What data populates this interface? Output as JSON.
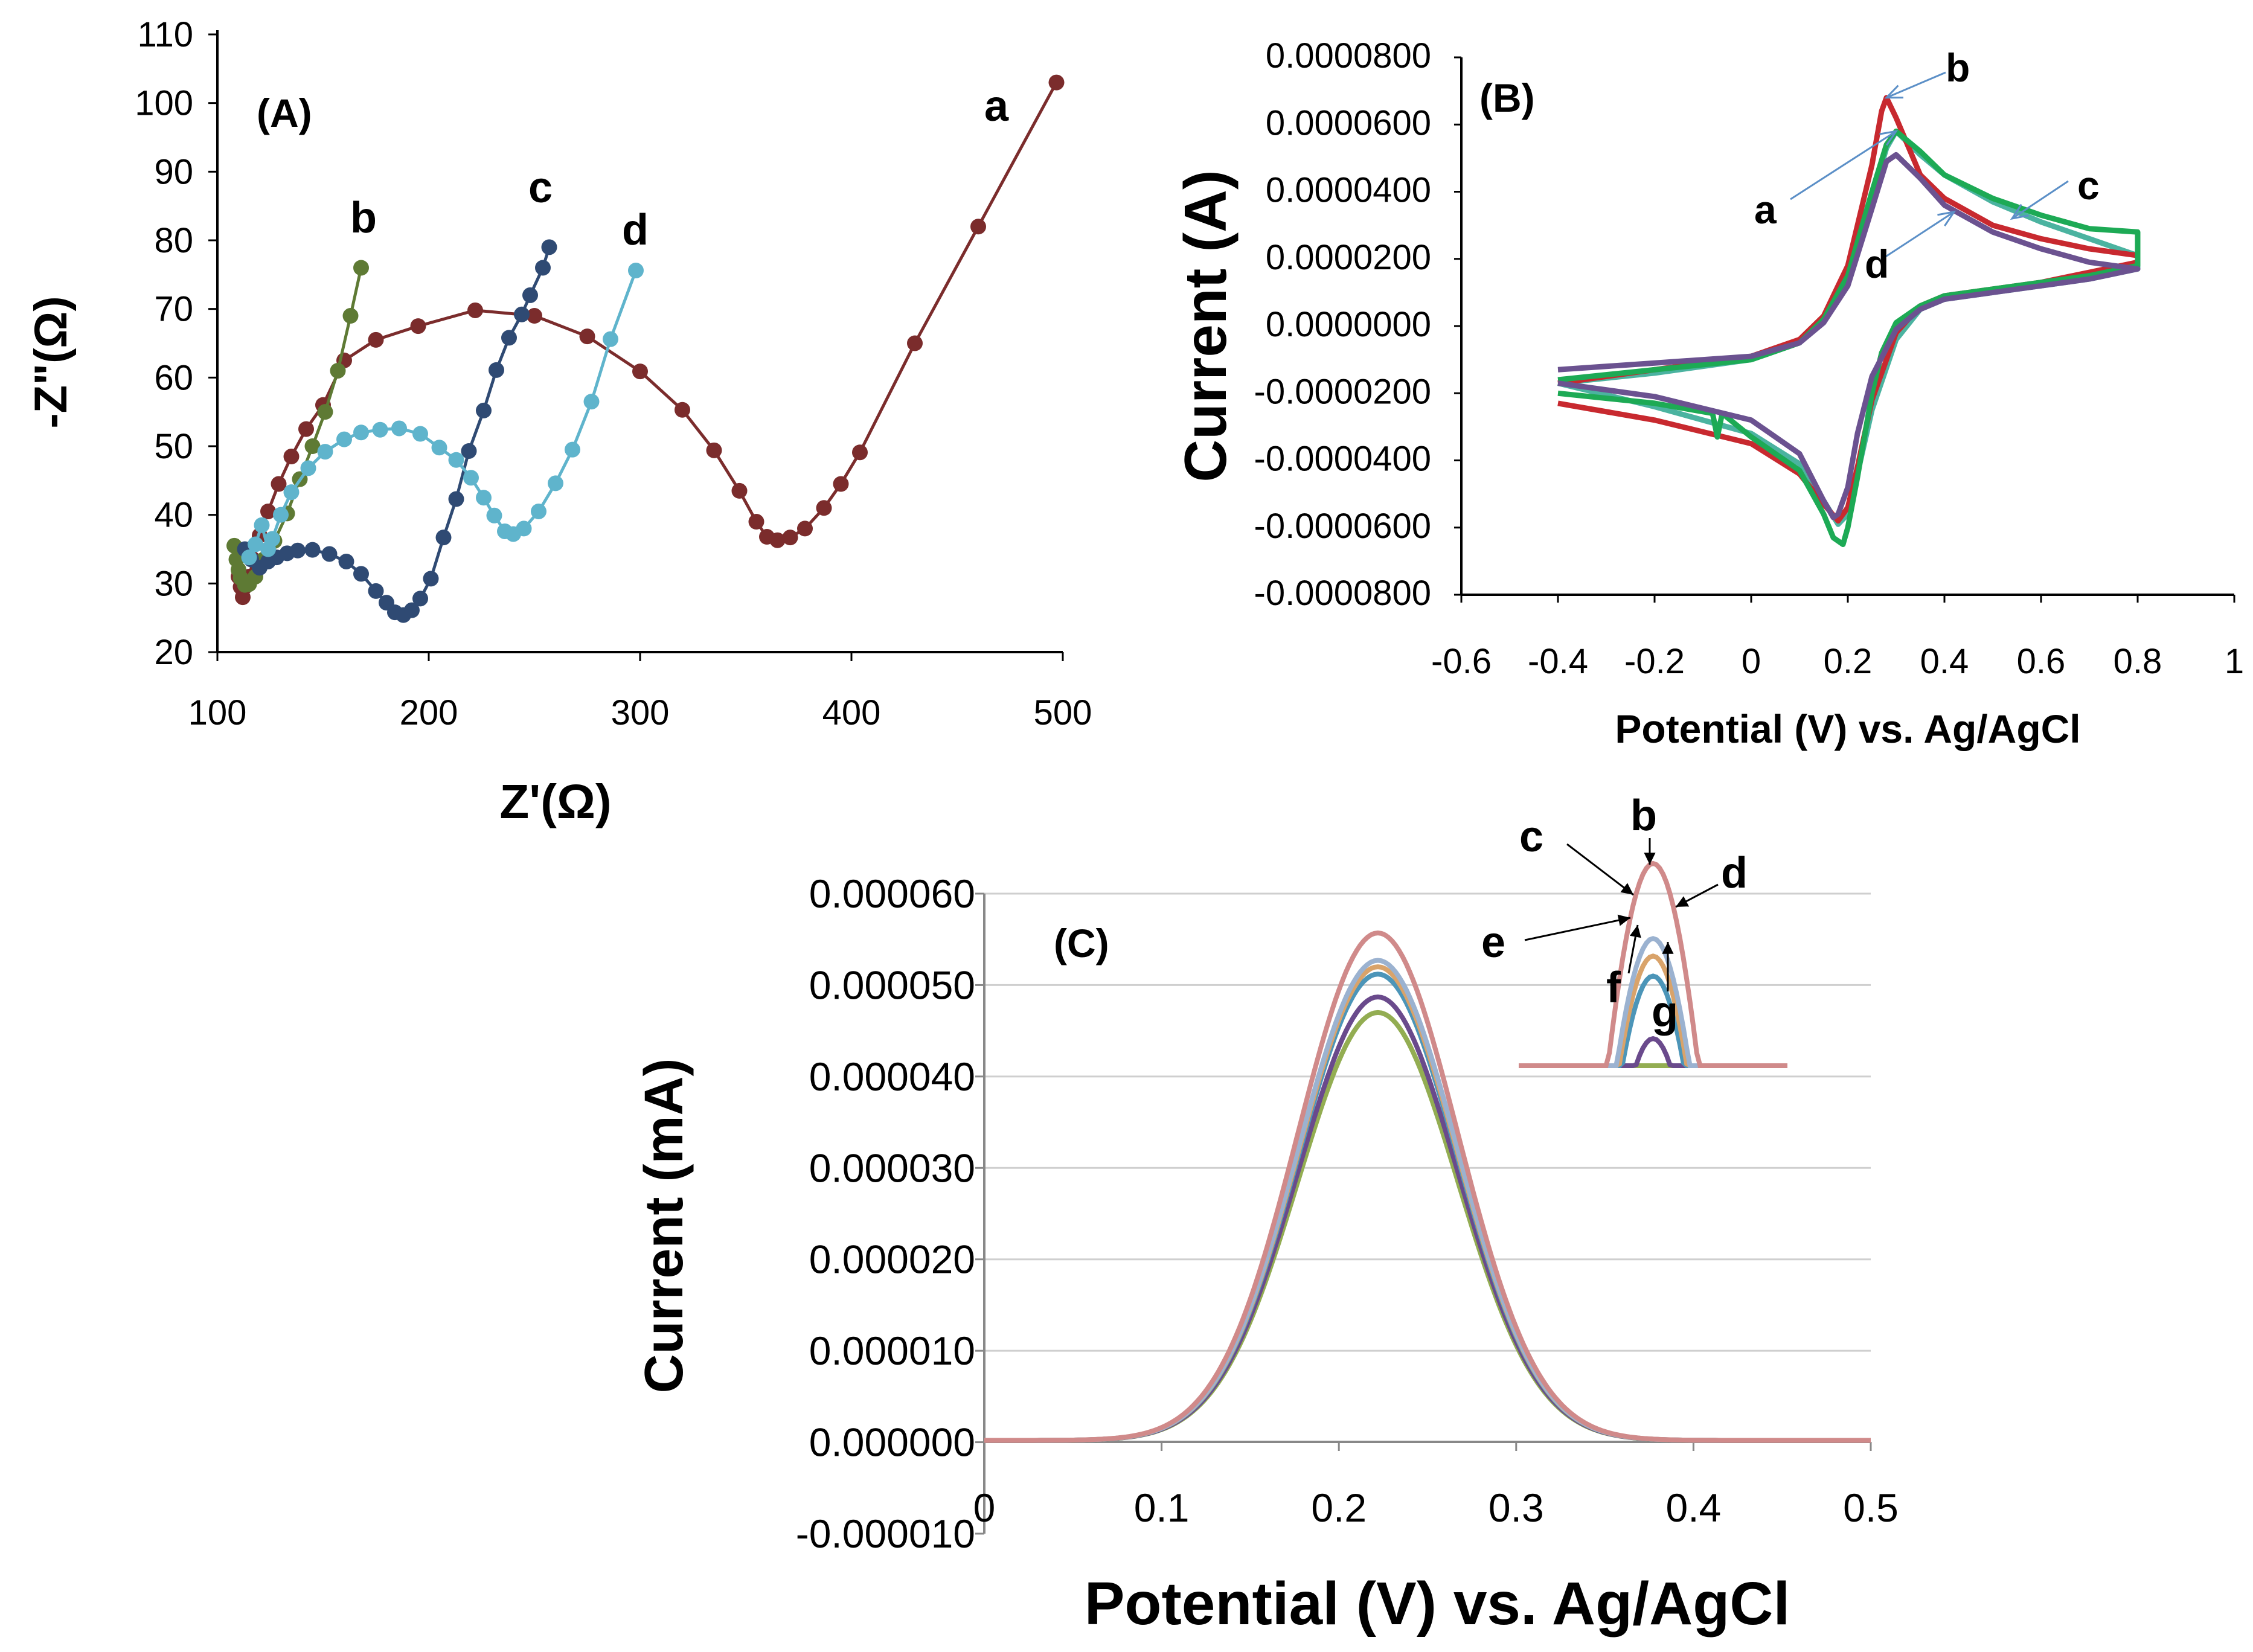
{
  "chart_data": [
    {
      "type": "scatter",
      "panel": "(A)",
      "title": "",
      "xlabel": "Z'(Ω)",
      "ylabel": "-Z\"(Ω)",
      "xlim": [
        100,
        500
      ],
      "ylim": [
        20,
        110
      ],
      "xticks": [
        "100",
        "200",
        "300",
        "400",
        "500"
      ],
      "yticks": [
        "20",
        "30",
        "40",
        "50",
        "60",
        "70",
        "80",
        "90",
        "100",
        "110"
      ],
      "grid": false,
      "series": [
        {
          "name": "a",
          "color": "#7b2c2c",
          "x": [
            110,
            111,
            112,
            113,
            115,
            117,
            120,
            124,
            129,
            135,
            142,
            150,
            160,
            175,
            195,
            222,
            250,
            275,
            300,
            320,
            335,
            347,
            355,
            360,
            365,
            371,
            378,
            387,
            395,
            404,
            430,
            460,
            497
          ],
          "y": [
            31,
            29.5,
            28,
            29.5,
            31,
            33.5,
            37,
            40.5,
            44.5,
            48.5,
            52.5,
            56,
            62.5,
            65.5,
            67.5,
            69.8,
            69,
            66,
            60.9,
            55.3,
            49.4,
            43.5,
            39,
            36.8,
            36.3,
            36.7,
            38,
            41,
            44.5,
            49.1,
            65,
            82,
            103
          ]
        },
        {
          "name": "b",
          "color": "#5e7a34",
          "x": [
            108,
            109,
            110,
            111,
            113,
            115,
            118,
            122,
            127,
            133,
            139,
            145,
            151,
            157,
            163,
            168
          ],
          "y": [
            35.5,
            33.5,
            32,
            30.8,
            29.8,
            29.9,
            31,
            33.5,
            36.2,
            40.2,
            45.2,
            50,
            55,
            61,
            69,
            76
          ]
        },
        {
          "name": "c",
          "color": "#2f4a73",
          "x": [
            113,
            116,
            120,
            124,
            128,
            133,
            138,
            145,
            153,
            161,
            168,
            175,
            180,
            184,
            188,
            192,
            196,
            201,
            207,
            213,
            219,
            226,
            232,
            238,
            244,
            248,
            254,
            257
          ],
          "y": [
            35,
            33.5,
            32.3,
            33.2,
            33.8,
            34.4,
            34.8,
            34.9,
            34.3,
            33.2,
            31.4,
            28.9,
            27.2,
            25.8,
            25.4,
            26.1,
            27.8,
            30.7,
            36.7,
            42.3,
            49.3,
            55.2,
            61.1,
            65.8,
            69.2,
            72,
            76,
            79
          ]
        },
        {
          "name": "d",
          "color": "#5fb4cc",
          "x": [
            115,
            118,
            121,
            124,
            126,
            130,
            135,
            143,
            151,
            160,
            168,
            177,
            186,
            196,
            205,
            213,
            220,
            226,
            231,
            236,
            240,
            245,
            252,
            260,
            268,
            277,
            286,
            298
          ],
          "y": [
            33.8,
            35.7,
            38.5,
            35,
            36.5,
            40,
            43.3,
            46.8,
            49.2,
            51,
            52,
            52.4,
            52.6,
            51.8,
            49.8,
            48,
            45.4,
            42.5,
            39.9,
            37.6,
            37.2,
            38,
            40.5,
            44.6,
            49.5,
            56.5,
            65.6,
            75.6
          ]
        }
      ],
      "annotations": [
        {
          "text": "a",
          "near": [
            475,
            99
          ]
        },
        {
          "text": "b",
          "near": [
            172,
            81
          ]
        },
        {
          "text": "c",
          "near": [
            258,
            86
          ]
        },
        {
          "text": "d",
          "near": [
            301,
            80
          ]
        }
      ]
    },
    {
      "type": "line",
      "panel": "(B)",
      "title": "",
      "xlabel": "Potential (V) vs. Ag/AgCl",
      "ylabel": "Current (A)",
      "xlim": [
        -0.6,
        1
      ],
      "ylim": [
        -8e-05,
        8e-05
      ],
      "xticks": [
        "-0.6",
        "-0.4",
        "-0.2",
        "0",
        "0.2",
        "0.4",
        "0.6",
        "0.8",
        "1"
      ],
      "yticks": [
        "-0.0000800",
        "-0.0000600",
        "-0.0000400",
        "-0.0000200",
        "0.0000000",
        "0.0000200",
        "0.0000400",
        "0.0000600",
        "0.0000800"
      ],
      "grid": false,
      "series": [
        {
          "name": "a",
          "color": "#4bb3a0",
          "forward": {
            "x": [
              -0.4,
              -0.2,
              0,
              0.1,
              0.15,
              0.2,
              0.25,
              0.28,
              0.3,
              0.35,
              0.4,
              0.5,
              0.6,
              0.7,
              0.8
            ],
            "y": [
              -1.7e-05,
              -1.4e-05,
              -1e-05,
              -5e-06,
              2e-06,
              1.4e-05,
              3.8e-05,
              5.3e-05,
              5.8e-05,
              5.1e-05,
              4.5e-05,
              3.7e-05,
              3.1e-05,
              2.6e-05,
              2.1e-05
            ]
          },
          "reverse": {
            "x": [
              0.8,
              0.7,
              0.6,
              0.5,
              0.4,
              0.35,
              0.3,
              0.25,
              0.22,
              0.2,
              0.18,
              0.15,
              0.1,
              0,
              -0.2,
              -0.4
            ],
            "y": [
              1.7e-05,
              1.4e-05,
              1.2e-05,
              1e-05,
              8e-06,
              5e-06,
              -4e-06,
              -2.5e-05,
              -4.4e-05,
              -5.6e-05,
              -5.9e-05,
              -5.2e-05,
              -4.1e-05,
              -3.2e-05,
              -2.4e-05,
              -1.7e-05
            ]
          }
        },
        {
          "name": "b",
          "color": "#c8292f",
          "forward": {
            "x": [
              -0.4,
              -0.2,
              0,
              0.1,
              0.15,
              0.2,
              0.25,
              0.27,
              0.28,
              0.3,
              0.35,
              0.4,
              0.5,
              0.6,
              0.7,
              0.8
            ],
            "y": [
              -1.7e-05,
              -1.3e-05,
              -9e-06,
              -4e-06,
              3e-06,
              1.8e-05,
              4.8e-05,
              6.4e-05,
              6.8e-05,
              6.2e-05,
              4.5e-05,
              3.8e-05,
              3e-05,
              2.6e-05,
              2.3e-05,
              2.1e-05
            ]
          },
          "reverse": {
            "x": [
              0.8,
              0.7,
              0.6,
              0.5,
              0.4,
              0.35,
              0.3,
              0.25,
              0.22,
              0.2,
              0.18,
              0.15,
              0.1,
              0,
              -0.2,
              -0.4
            ],
            "y": [
              1.9e-05,
              1.6e-05,
              1.3e-05,
              1.1e-05,
              9e-06,
              6e-06,
              -2e-06,
              -2.2e-05,
              -4.2e-05,
              -5.4e-05,
              -5.8e-05,
              -5.3e-05,
              -4.4e-05,
              -3.5e-05,
              -2.8e-05,
              -2.3e-05
            ]
          }
        },
        {
          "name": "c",
          "color": "#1daa55",
          "forward": {
            "x": [
              -0.4,
              -0.2,
              0,
              0.1,
              0.15,
              0.2,
              0.25,
              0.28,
              0.3,
              0.35,
              0.4,
              0.5,
              0.6,
              0.7,
              0.8
            ],
            "y": [
              -1.6e-05,
              -1.3e-05,
              -1e-05,
              -5e-06,
              2e-06,
              1.5e-05,
              4e-05,
              5.4e-05,
              5.8e-05,
              5.2e-05,
              4.5e-05,
              3.8e-05,
              3.3e-05,
              2.9e-05,
              2.8e-05
            ]
          },
          "reverse": {
            "x": [
              0.8,
              0.7,
              0.6,
              0.5,
              0.4,
              0.35,
              0.3,
              0.27,
              0.25,
              0.22,
              0.2,
              0.19,
              0.17,
              0.15,
              0.1,
              0,
              -0.06,
              -0.07,
              -0.08,
              -0.2,
              -0.4
            ],
            "y": [
              1.8e-05,
              1.5e-05,
              1.3e-05,
              1.1e-05,
              9e-06,
              6e-06,
              1e-06,
              -8e-06,
              -2e-05,
              -4.5e-05,
              -6e-05,
              -6.5e-05,
              -6.3e-05,
              -5.6e-05,
              -4.3e-05,
              -3.3e-05,
              -2.6e-05,
              -3.3e-05,
              -2.6e-05,
              -2.3e-05,
              -2e-05
            ]
          }
        },
        {
          "name": "d",
          "color": "#6b5290",
          "forward": {
            "x": [
              -0.4,
              -0.2,
              0,
              0.1,
              0.15,
              0.2,
              0.25,
              0.28,
              0.3,
              0.35,
              0.4,
              0.5,
              0.6,
              0.7,
              0.8
            ],
            "y": [
              -1.3e-05,
              -1.1e-05,
              -9e-06,
              -5e-06,
              1e-06,
              1.2e-05,
              3.5e-05,
              4.9e-05,
              5.1e-05,
              4.4e-05,
              3.6e-05,
              2.8e-05,
              2.3e-05,
              1.9e-05,
              1.7e-05
            ]
          },
          "reverse": {
            "x": [
              0.8,
              0.7,
              0.6,
              0.5,
              0.4,
              0.35,
              0.3,
              0.25,
              0.22,
              0.2,
              0.18,
              0.17,
              0.15,
              0.1,
              0,
              -0.2,
              -0.4
            ],
            "y": [
              1.7e-05,
              1.4e-05,
              1.2e-05,
              1e-05,
              8e-06,
              5e-06,
              -1e-06,
              -1.5e-05,
              -3.2e-05,
              -4.8e-05,
              -5.6e-05,
              -5.7e-05,
              -5.2e-05,
              -3.8e-05,
              -2.8e-05,
              -2.1e-05,
              -1.7e-05
            ]
          }
        }
      ],
      "annotations": [
        {
          "text": "a",
          "arrow_to": [
            0.3,
            5.8e-05
          ]
        },
        {
          "text": "b",
          "arrow_to": [
            0.28,
            6.8e-05
          ]
        },
        {
          "text": "c",
          "arrow_to": [
            0.54,
            3.2e-05
          ]
        },
        {
          "text": "d",
          "arrow_to": [
            0.42,
            3.4e-05
          ]
        }
      ]
    },
    {
      "type": "line",
      "panel": "(C)",
      "title": "",
      "xlabel": "Potential (V) vs. Ag/AgCl",
      "ylabel": "Current (mA)",
      "xlim": [
        0,
        0.5
      ],
      "ylim": [
        -1e-05,
        6e-05
      ],
      "xticks": [
        "0",
        "0.1",
        "0.2",
        "0.3",
        "0.4",
        "0.5"
      ],
      "yticks": [
        "-0.000010",
        "0.000000",
        "0.000010",
        "0.000020",
        "0.000030",
        "0.000040",
        "0.000050",
        "0.000060"
      ],
      "grid": true,
      "peak_potential": 0.222,
      "peak_width": 0.045,
      "series": [
        {
          "name": "b",
          "color": "#d08a8a",
          "peak": 5.55e-05
        },
        {
          "name": "c",
          "color": "#9bb2d0",
          "peak": 5.25e-05
        },
        {
          "name": "d",
          "color": "#d9a36a",
          "peak": 5.18e-05
        },
        {
          "name": "e",
          "color": "#4c95b8",
          "peak": 5.1e-05
        },
        {
          "name": "f",
          "color": "#6a4a8c",
          "peak": 4.85e-05
        },
        {
          "name": "g",
          "color": "#93ad52",
          "peak": 4.68e-05
        }
      ],
      "inset_labels": [
        "b",
        "c",
        "d",
        "e",
        "f",
        "g"
      ]
    }
  ]
}
